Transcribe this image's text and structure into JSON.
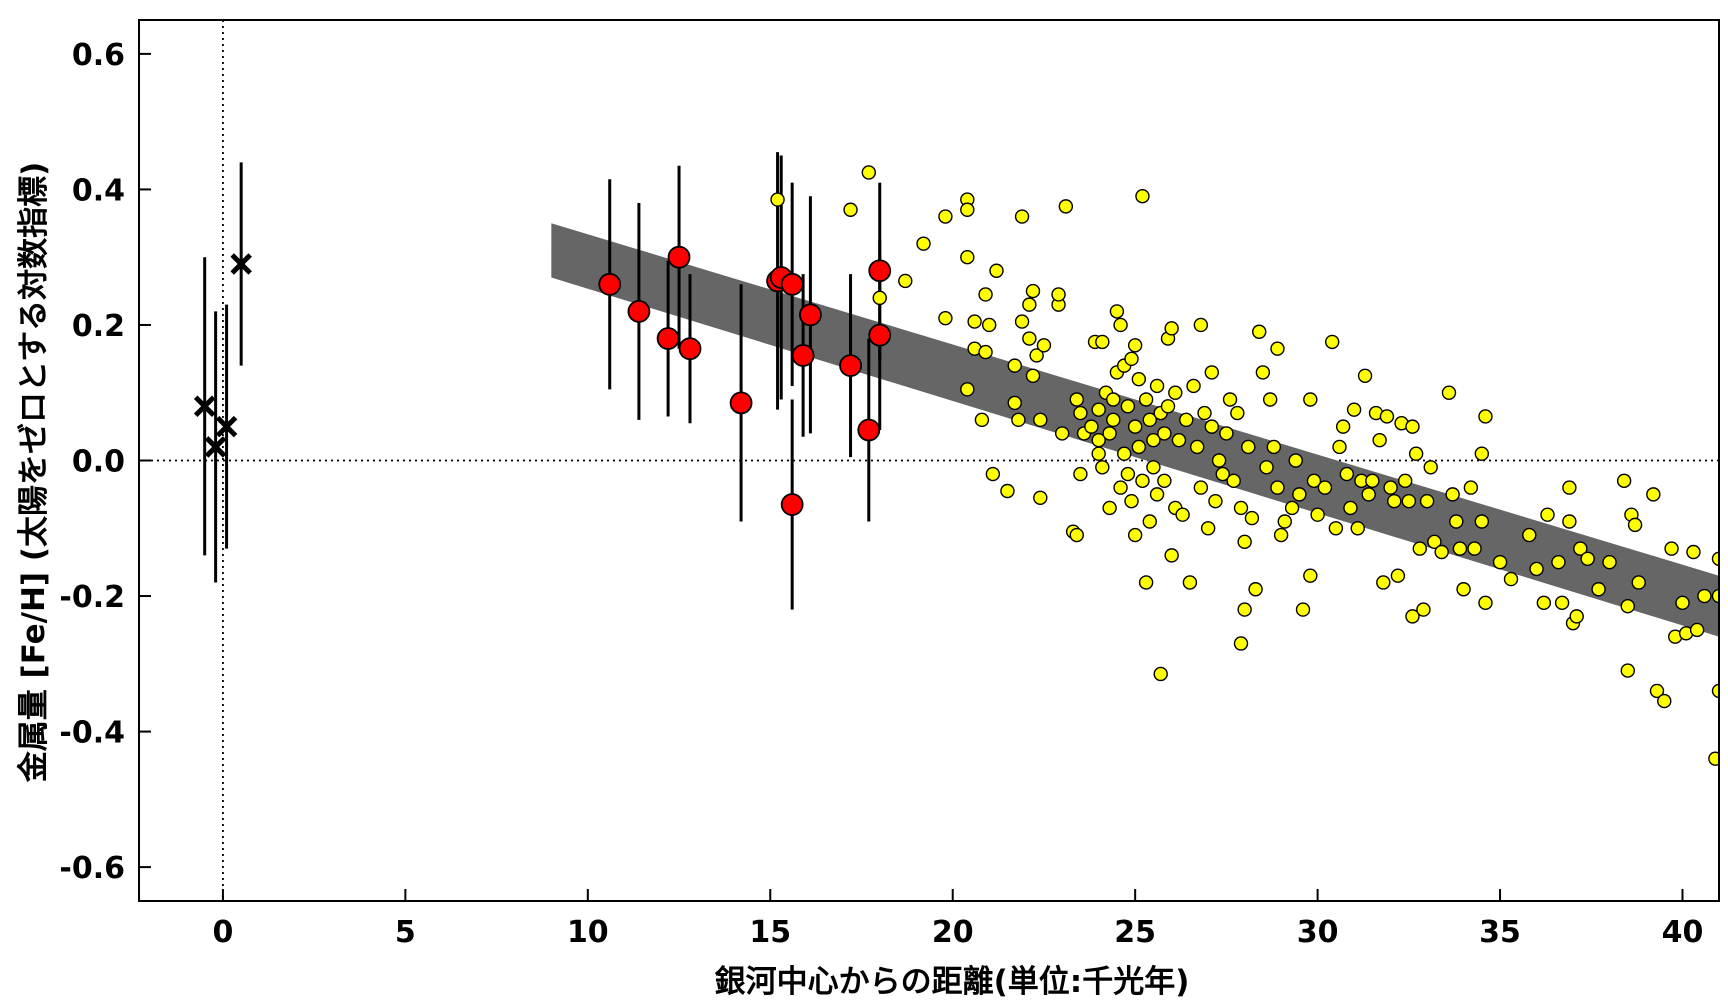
{
  "chart_data": {
    "type": "scatter",
    "xlabel": "銀河中心からの距離(単位:千光年)",
    "ylabel": "金属量 [Fe/H] (太陽をゼロとする対数指標)",
    "xlim": [
      -2.3,
      41
    ],
    "ylim": [
      -0.65,
      0.65
    ],
    "x_ticks": [
      0,
      5,
      10,
      15,
      20,
      25,
      30,
      35,
      40
    ],
    "x_tick_labels": [
      "0",
      "5",
      "10",
      "15",
      "20",
      "25",
      "30",
      "35",
      "40"
    ],
    "y_ticks": [
      0.6,
      0.4,
      0.2,
      0.0,
      -0.2,
      -0.4,
      -0.6
    ],
    "y_tick_labels": [
      "0.6",
      "0.4",
      "0.2",
      "0.0",
      "-0.2",
      "-0.4",
      "-0.6"
    ],
    "reference_lines": {
      "x": 0,
      "y": 0,
      "style": "dotted"
    },
    "band": {
      "color": "#666666",
      "x_start": 9.0,
      "y_start_lower": 0.27,
      "y_start_upper": 0.35,
      "x_end": 41.0,
      "y_end_lower": -0.26,
      "y_end_upper": -0.17
    },
    "series": [
      {
        "marker": "x",
        "color": "#000000",
        "points": [
          {
            "x": -0.5,
            "y": 0.08,
            "err_lo": 0.22,
            "err_hi": 0.22
          },
          {
            "x": -0.2,
            "y": 0.02,
            "err_lo": 0.2,
            "err_hi": 0.2
          },
          {
            "x": 0.1,
            "y": 0.05,
            "err_lo": 0.18,
            "err_hi": 0.18
          },
          {
            "x": 0.5,
            "y": 0.29,
            "err_lo": 0.15,
            "err_hi": 0.15
          }
        ]
      },
      {
        "marker": "circle",
        "color": "#ff0000",
        "points": [
          {
            "x": 10.6,
            "y": 0.26,
            "err_lo": 0.155,
            "err_hi": 0.155
          },
          {
            "x": 11.4,
            "y": 0.22,
            "err_lo": 0.16,
            "err_hi": 0.16
          },
          {
            "x": 12.2,
            "y": 0.18,
            "err_lo": 0.115,
            "err_hi": 0.115
          },
          {
            "x": 12.5,
            "y": 0.3,
            "err_lo": 0.135,
            "err_hi": 0.135
          },
          {
            "x": 12.8,
            "y": 0.165,
            "err_lo": 0.11,
            "err_hi": 0.11
          },
          {
            "x": 14.2,
            "y": 0.085,
            "err_lo": 0.175,
            "err_hi": 0.175
          },
          {
            "x": 15.2,
            "y": 0.265,
            "err_lo": 0.19,
            "err_hi": 0.19
          },
          {
            "x": 15.3,
            "y": 0.27,
            "err_lo": 0.18,
            "err_hi": 0.18
          },
          {
            "x": 15.6,
            "y": 0.26,
            "err_lo": 0.15,
            "err_hi": 0.15
          },
          {
            "x": 15.6,
            "y": -0.065,
            "err_lo": 0.155,
            "err_hi": 0.155
          },
          {
            "x": 15.9,
            "y": 0.155,
            "err_lo": 0.12,
            "err_hi": 0.12
          },
          {
            "x": 16.1,
            "y": 0.215,
            "err_lo": 0.175,
            "err_hi": 0.175
          },
          {
            "x": 17.2,
            "y": 0.14,
            "err_lo": 0.135,
            "err_hi": 0.135
          },
          {
            "x": 17.7,
            "y": 0.045,
            "err_lo": 0.135,
            "err_hi": 0.135
          },
          {
            "x": 18.0,
            "y": 0.28,
            "err_lo": 0.13,
            "err_hi": 0.13
          },
          {
            "x": 18.0,
            "y": 0.185,
            "err_lo": 0.14,
            "err_hi": 0.14
          }
        ]
      },
      {
        "marker": "circle",
        "color": "#ffff00",
        "points": [
          {
            "x": 15.2,
            "y": 0.385
          },
          {
            "x": 17.2,
            "y": 0.37
          },
          {
            "x": 17.7,
            "y": 0.425
          },
          {
            "x": 18.0,
            "y": 0.24
          },
          {
            "x": 18.7,
            "y": 0.265
          },
          {
            "x": 19.2,
            "y": 0.32
          },
          {
            "x": 19.8,
            "y": 0.36
          },
          {
            "x": 19.8,
            "y": 0.21
          },
          {
            "x": 20.4,
            "y": 0.385
          },
          {
            "x": 20.4,
            "y": 0.37
          },
          {
            "x": 20.4,
            "y": 0.3
          },
          {
            "x": 20.4,
            "y": 0.105
          },
          {
            "x": 20.6,
            "y": 0.165
          },
          {
            "x": 20.6,
            "y": 0.205
          },
          {
            "x": 20.8,
            "y": 0.06
          },
          {
            "x": 20.9,
            "y": 0.16
          },
          {
            "x": 20.9,
            "y": 0.245
          },
          {
            "x": 21.0,
            "y": 0.2
          },
          {
            "x": 21.1,
            "y": -0.02
          },
          {
            "x": 21.2,
            "y": 0.28
          },
          {
            "x": 21.5,
            "y": -0.045
          },
          {
            "x": 21.7,
            "y": 0.14
          },
          {
            "x": 21.7,
            "y": 0.085
          },
          {
            "x": 21.8,
            "y": 0.06
          },
          {
            "x": 21.9,
            "y": 0.205
          },
          {
            "x": 21.9,
            "y": 0.36
          },
          {
            "x": 22.1,
            "y": 0.23
          },
          {
            "x": 22.1,
            "y": 0.18
          },
          {
            "x": 22.2,
            "y": 0.125
          },
          {
            "x": 22.2,
            "y": 0.25
          },
          {
            "x": 22.3,
            "y": 0.155
          },
          {
            "x": 22.4,
            "y": 0.06
          },
          {
            "x": 22.5,
            "y": 0.17
          },
          {
            "x": 22.4,
            "y": -0.055
          },
          {
            "x": 22.9,
            "y": 0.23
          },
          {
            "x": 22.9,
            "y": 0.245
          },
          {
            "x": 23.0,
            "y": 0.04
          },
          {
            "x": 23.1,
            "y": 0.375
          },
          {
            "x": 23.3,
            "y": -0.105
          },
          {
            "x": 23.4,
            "y": -0.11
          },
          {
            "x": 23.4,
            "y": 0.09
          },
          {
            "x": 23.5,
            "y": 0.07
          },
          {
            "x": 23.5,
            "y": -0.02
          },
          {
            "x": 23.6,
            "y": 0.04
          },
          {
            "x": 23.8,
            "y": 0.05
          },
          {
            "x": 23.9,
            "y": 0.175
          },
          {
            "x": 24.0,
            "y": 0.03
          },
          {
            "x": 24.0,
            "y": 0.075
          },
          {
            "x": 24.0,
            "y": 0.01
          },
          {
            "x": 24.1,
            "y": 0.175
          },
          {
            "x": 24.1,
            "y": -0.01
          },
          {
            "x": 24.2,
            "y": 0.1
          },
          {
            "x": 24.3,
            "y": -0.07
          },
          {
            "x": 24.3,
            "y": 0.04
          },
          {
            "x": 24.4,
            "y": 0.09
          },
          {
            "x": 24.4,
            "y": 0.06
          },
          {
            "x": 24.5,
            "y": 0.13
          },
          {
            "x": 24.5,
            "y": 0.22
          },
          {
            "x": 24.6,
            "y": -0.04
          },
          {
            "x": 24.6,
            "y": 0.2
          },
          {
            "x": 24.7,
            "y": 0.14
          },
          {
            "x": 24.7,
            "y": 0.01
          },
          {
            "x": 24.8,
            "y": 0.08
          },
          {
            "x": 24.8,
            "y": -0.02
          },
          {
            "x": 24.9,
            "y": 0.15
          },
          {
            "x": 24.9,
            "y": -0.06
          },
          {
            "x": 25.0,
            "y": 0.17
          },
          {
            "x": 25.0,
            "y": 0.05
          },
          {
            "x": 25.0,
            "y": -0.11
          },
          {
            "x": 25.1,
            "y": 0.12
          },
          {
            "x": 25.1,
            "y": 0.02
          },
          {
            "x": 25.2,
            "y": 0.39
          },
          {
            "x": 25.2,
            "y": -0.03
          },
          {
            "x": 25.3,
            "y": 0.09
          },
          {
            "x": 25.3,
            "y": -0.18
          },
          {
            "x": 25.4,
            "y": 0.06
          },
          {
            "x": 25.4,
            "y": -0.09
          },
          {
            "x": 25.5,
            "y": 0.03
          },
          {
            "x": 25.5,
            "y": -0.01
          },
          {
            "x": 25.6,
            "y": 0.11
          },
          {
            "x": 25.6,
            "y": -0.05
          },
          {
            "x": 25.7,
            "y": 0.07
          },
          {
            "x": 25.7,
            "y": -0.315
          },
          {
            "x": 25.8,
            "y": 0.04
          },
          {
            "x": 25.8,
            "y": -0.03
          },
          {
            "x": 25.9,
            "y": 0.18
          },
          {
            "x": 25.9,
            "y": 0.08
          },
          {
            "x": 26.0,
            "y": 0.195
          },
          {
            "x": 26.0,
            "y": -0.14
          },
          {
            "x": 26.1,
            "y": 0.1
          },
          {
            "x": 26.1,
            "y": -0.07
          },
          {
            "x": 26.2,
            "y": 0.03
          },
          {
            "x": 26.3,
            "y": -0.08
          },
          {
            "x": 26.4,
            "y": 0.06
          },
          {
            "x": 26.5,
            "y": -0.18
          },
          {
            "x": 26.6,
            "y": 0.11
          },
          {
            "x": 26.7,
            "y": 0.02
          },
          {
            "x": 26.8,
            "y": 0.2
          },
          {
            "x": 26.8,
            "y": -0.04
          },
          {
            "x": 26.9,
            "y": 0.07
          },
          {
            "x": 27.0,
            "y": -0.1
          },
          {
            "x": 27.1,
            "y": 0.13
          },
          {
            "x": 27.1,
            "y": 0.05
          },
          {
            "x": 27.2,
            "y": -0.06
          },
          {
            "x": 27.3,
            "y": 0.0
          },
          {
            "x": 27.4,
            "y": -0.02
          },
          {
            "x": 27.5,
            "y": 0.04
          },
          {
            "x": 27.6,
            "y": 0.09
          },
          {
            "x": 27.7,
            "y": -0.03
          },
          {
            "x": 27.8,
            "y": 0.07
          },
          {
            "x": 27.9,
            "y": -0.07
          },
          {
            "x": 27.9,
            "y": -0.27
          },
          {
            "x": 28.0,
            "y": -0.22
          },
          {
            "x": 28.0,
            "y": -0.12
          },
          {
            "x": 28.1,
            "y": 0.02
          },
          {
            "x": 28.2,
            "y": -0.085
          },
          {
            "x": 28.3,
            "y": -0.19
          },
          {
            "x": 28.4,
            "y": 0.19
          },
          {
            "x": 28.5,
            "y": 0.13
          },
          {
            "x": 28.6,
            "y": -0.01
          },
          {
            "x": 28.7,
            "y": 0.09
          },
          {
            "x": 28.8,
            "y": 0.02
          },
          {
            "x": 28.9,
            "y": -0.04
          },
          {
            "x": 28.9,
            "y": 0.165
          },
          {
            "x": 29.0,
            "y": -0.11
          },
          {
            "x": 29.1,
            "y": -0.09
          },
          {
            "x": 29.3,
            "y": -0.07
          },
          {
            "x": 29.4,
            "y": 0.0
          },
          {
            "x": 29.5,
            "y": -0.05
          },
          {
            "x": 29.6,
            "y": -0.22
          },
          {
            "x": 29.8,
            "y": 0.09
          },
          {
            "x": 29.8,
            "y": -0.17
          },
          {
            "x": 29.9,
            "y": -0.03
          },
          {
            "x": 30.0,
            "y": -0.08
          },
          {
            "x": 30.2,
            "y": -0.04
          },
          {
            "x": 30.4,
            "y": 0.175
          },
          {
            "x": 30.5,
            "y": -0.1
          },
          {
            "x": 30.6,
            "y": 0.02
          },
          {
            "x": 30.7,
            "y": 0.05
          },
          {
            "x": 30.8,
            "y": -0.02
          },
          {
            "x": 30.9,
            "y": -0.07
          },
          {
            "x": 31.0,
            "y": 0.075
          },
          {
            "x": 31.1,
            "y": -0.1
          },
          {
            "x": 31.2,
            "y": -0.03
          },
          {
            "x": 31.3,
            "y": 0.125
          },
          {
            "x": 31.4,
            "y": -0.05
          },
          {
            "x": 31.5,
            "y": -0.03
          },
          {
            "x": 31.6,
            "y": 0.07
          },
          {
            "x": 31.7,
            "y": 0.03
          },
          {
            "x": 31.8,
            "y": -0.18
          },
          {
            "x": 31.9,
            "y": 0.065
          },
          {
            "x": 32.0,
            "y": -0.04
          },
          {
            "x": 32.1,
            "y": -0.06
          },
          {
            "x": 32.2,
            "y": -0.17
          },
          {
            "x": 32.3,
            "y": 0.055
          },
          {
            "x": 32.4,
            "y": -0.03
          },
          {
            "x": 32.5,
            "y": -0.06
          },
          {
            "x": 32.6,
            "y": 0.05
          },
          {
            "x": 32.6,
            "y": -0.23
          },
          {
            "x": 32.7,
            "y": 0.01
          },
          {
            "x": 32.8,
            "y": -0.13
          },
          {
            "x": 32.9,
            "y": -0.22
          },
          {
            "x": 33.0,
            "y": -0.06
          },
          {
            "x": 33.1,
            "y": -0.01
          },
          {
            "x": 33.2,
            "y": -0.12
          },
          {
            "x": 33.4,
            "y": -0.135
          },
          {
            "x": 33.6,
            "y": 0.1
          },
          {
            "x": 33.7,
            "y": -0.05
          },
          {
            "x": 33.8,
            "y": -0.09
          },
          {
            "x": 33.9,
            "y": -0.13
          },
          {
            "x": 34.0,
            "y": -0.19
          },
          {
            "x": 34.2,
            "y": -0.04
          },
          {
            "x": 34.3,
            "y": -0.13
          },
          {
            "x": 34.5,
            "y": 0.01
          },
          {
            "x": 34.5,
            "y": -0.09
          },
          {
            "x": 34.6,
            "y": 0.065
          },
          {
            "x": 34.6,
            "y": -0.21
          },
          {
            "x": 35.0,
            "y": -0.15
          },
          {
            "x": 35.3,
            "y": -0.175
          },
          {
            "x": 35.8,
            "y": -0.11
          },
          {
            "x": 36.0,
            "y": -0.16
          },
          {
            "x": 36.2,
            "y": -0.21
          },
          {
            "x": 36.3,
            "y": -0.08
          },
          {
            "x": 36.6,
            "y": -0.15
          },
          {
            "x": 36.7,
            "y": -0.21
          },
          {
            "x": 36.9,
            "y": -0.04
          },
          {
            "x": 36.9,
            "y": -0.09
          },
          {
            "x": 37.0,
            "y": -0.24
          },
          {
            "x": 37.1,
            "y": -0.23
          },
          {
            "x": 37.2,
            "y": -0.13
          },
          {
            "x": 37.4,
            "y": -0.145
          },
          {
            "x": 37.7,
            "y": -0.19
          },
          {
            "x": 38.0,
            "y": -0.15
          },
          {
            "x": 38.4,
            "y": -0.03
          },
          {
            "x": 38.5,
            "y": -0.215
          },
          {
            "x": 38.5,
            "y": -0.31
          },
          {
            "x": 38.6,
            "y": -0.08
          },
          {
            "x": 38.7,
            "y": -0.095
          },
          {
            "x": 38.8,
            "y": -0.18
          },
          {
            "x": 39.2,
            "y": -0.05
          },
          {
            "x": 39.3,
            "y": -0.34
          },
          {
            "x": 39.5,
            "y": -0.355
          },
          {
            "x": 39.7,
            "y": -0.13
          },
          {
            "x": 39.8,
            "y": -0.26
          },
          {
            "x": 40.0,
            "y": -0.21
          },
          {
            "x": 40.1,
            "y": -0.255
          },
          {
            "x": 40.3,
            "y": -0.135
          },
          {
            "x": 40.4,
            "y": -0.25
          },
          {
            "x": 40.6,
            "y": -0.2
          },
          {
            "x": 40.9,
            "y": -0.44
          },
          {
            "x": 41.0,
            "y": -0.145
          },
          {
            "x": 41.0,
            "y": -0.2
          },
          {
            "x": 41.0,
            "y": -0.34
          }
        ]
      }
    ]
  }
}
